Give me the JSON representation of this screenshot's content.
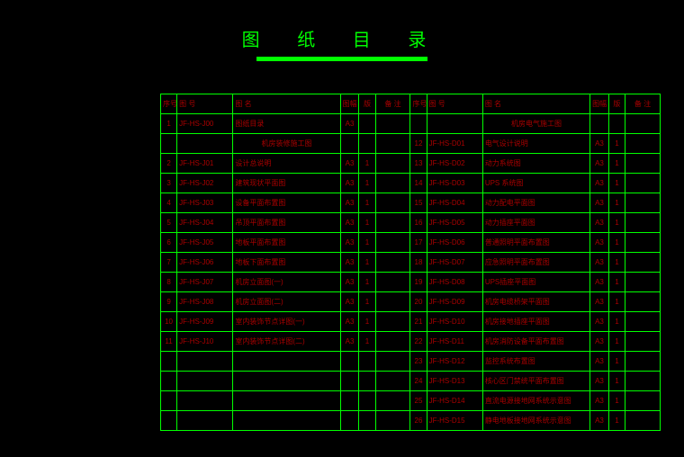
{
  "title": "图 纸 目 录",
  "headers": {
    "seq": "序号",
    "no": "图 号",
    "name": "图       名",
    "fmt": "图幅",
    "ver": "版",
    "note": "备  注"
  },
  "sections": {
    "left_header": "机房装修施工图",
    "right_header": "机房电气施工图"
  },
  "left_rows": [
    {
      "seq": "1",
      "no": "JF-HS-J00",
      "name": "图纸目录",
      "fmt": "A3",
      "ver": "",
      "note": ""
    },
    {
      "seq": "",
      "no": "",
      "name": "",
      "fmt": "",
      "ver": "",
      "note": "",
      "section": true
    },
    {
      "seq": "2",
      "no": "JF-HS-J01",
      "name": "设计总说明",
      "fmt": "A3",
      "ver": "1",
      "note": ""
    },
    {
      "seq": "3",
      "no": "JF-HS-J02",
      "name": "建筑现状平面图",
      "fmt": "A3",
      "ver": "1",
      "note": ""
    },
    {
      "seq": "4",
      "no": "JF-HS-J03",
      "name": "设备平面布置图",
      "fmt": "A3",
      "ver": "1",
      "note": ""
    },
    {
      "seq": "5",
      "no": "JF-HS-J04",
      "name": "吊顶平面布置图",
      "fmt": "A3",
      "ver": "1",
      "note": ""
    },
    {
      "seq": "6",
      "no": "JF-HS-J05",
      "name": "地板平面布置图",
      "fmt": "A3",
      "ver": "1",
      "note": ""
    },
    {
      "seq": "7",
      "no": "JF-HS-J06",
      "name": "地板下面布置图",
      "fmt": "A3",
      "ver": "1",
      "note": ""
    },
    {
      "seq": "8",
      "no": "JF-HS-J07",
      "name": "机房立面图(一)",
      "fmt": "A3",
      "ver": "1",
      "note": ""
    },
    {
      "seq": "9",
      "no": "JF-HS-J08",
      "name": "机房立面图(二)",
      "fmt": "A3",
      "ver": "1",
      "note": ""
    },
    {
      "seq": "10",
      "no": "JF-HS-J09",
      "name": "室内装饰节点详图(一)",
      "fmt": "A3",
      "ver": "1",
      "note": ""
    },
    {
      "seq": "11",
      "no": "JF-HS-J10",
      "name": "室内装饰节点详图(二)",
      "fmt": "A3",
      "ver": "1",
      "note": ""
    },
    {
      "seq": "",
      "no": "",
      "name": "",
      "fmt": "",
      "ver": "",
      "note": ""
    },
    {
      "seq": "",
      "no": "",
      "name": "",
      "fmt": "",
      "ver": "",
      "note": ""
    },
    {
      "seq": "",
      "no": "",
      "name": "",
      "fmt": "",
      "ver": "",
      "note": ""
    },
    {
      "seq": "",
      "no": "",
      "name": "",
      "fmt": "",
      "ver": "",
      "note": ""
    }
  ],
  "right_rows": [
    {
      "seq": "",
      "no": "",
      "name": "",
      "fmt": "",
      "ver": "",
      "note": "",
      "section": true
    },
    {
      "seq": "12",
      "no": "JF-HS-D01",
      "name": "电气设计说明",
      "fmt": "A3",
      "ver": "1",
      "note": ""
    },
    {
      "seq": "13",
      "no": "JF-HS-D02",
      "name": "动力系统图",
      "fmt": "A3",
      "ver": "1",
      "note": ""
    },
    {
      "seq": "14",
      "no": "JF-HS-D03",
      "name": "UPS 系统图",
      "fmt": "A3",
      "ver": "1",
      "note": ""
    },
    {
      "seq": "15",
      "no": "JF-HS-D04",
      "name": "动力配电平面图",
      "fmt": "A3",
      "ver": "1",
      "note": ""
    },
    {
      "seq": "16",
      "no": "JF-HS-D05",
      "name": "动力插座平面图",
      "fmt": "A3",
      "ver": "1",
      "note": ""
    },
    {
      "seq": "17",
      "no": "JF-HS-D06",
      "name": "普通照明平面布置图",
      "fmt": "A3",
      "ver": "1",
      "note": ""
    },
    {
      "seq": "18",
      "no": "JF-HS-D07",
      "name": "应急照明平面布置图",
      "fmt": "A3",
      "ver": "1",
      "note": ""
    },
    {
      "seq": "19",
      "no": "JF-HS-D08",
      "name": "UPS插座平面图",
      "fmt": "A3",
      "ver": "1",
      "note": ""
    },
    {
      "seq": "20",
      "no": "JF-HS-D09",
      "name": "机房电缆桥架平面图",
      "fmt": "A3",
      "ver": "1",
      "note": ""
    },
    {
      "seq": "21",
      "no": "JF-HS-D10",
      "name": "机房接地插座平面图",
      "fmt": "A3",
      "ver": "1",
      "note": ""
    },
    {
      "seq": "22",
      "no": "JF-HS-D11",
      "name": "机房消防设备平面布置图",
      "fmt": "A3",
      "ver": "1",
      "note": ""
    },
    {
      "seq": "23",
      "no": "JF-HS-D12",
      "name": "监控系统布置图",
      "fmt": "A3",
      "ver": "1",
      "note": ""
    },
    {
      "seq": "24",
      "no": "JF-HS-D13",
      "name": "核心区门禁统平面布置图",
      "fmt": "A3",
      "ver": "1",
      "note": ""
    },
    {
      "seq": "25",
      "no": "JF-HS-D14",
      "name": "直流电源接地网系统示意图",
      "fmt": "A3",
      "ver": "1",
      "note": ""
    },
    {
      "seq": "26",
      "no": "JF-HS-D15",
      "name": "静电地板接地网系统示意图",
      "fmt": "A3",
      "ver": "1",
      "note": ""
    }
  ]
}
